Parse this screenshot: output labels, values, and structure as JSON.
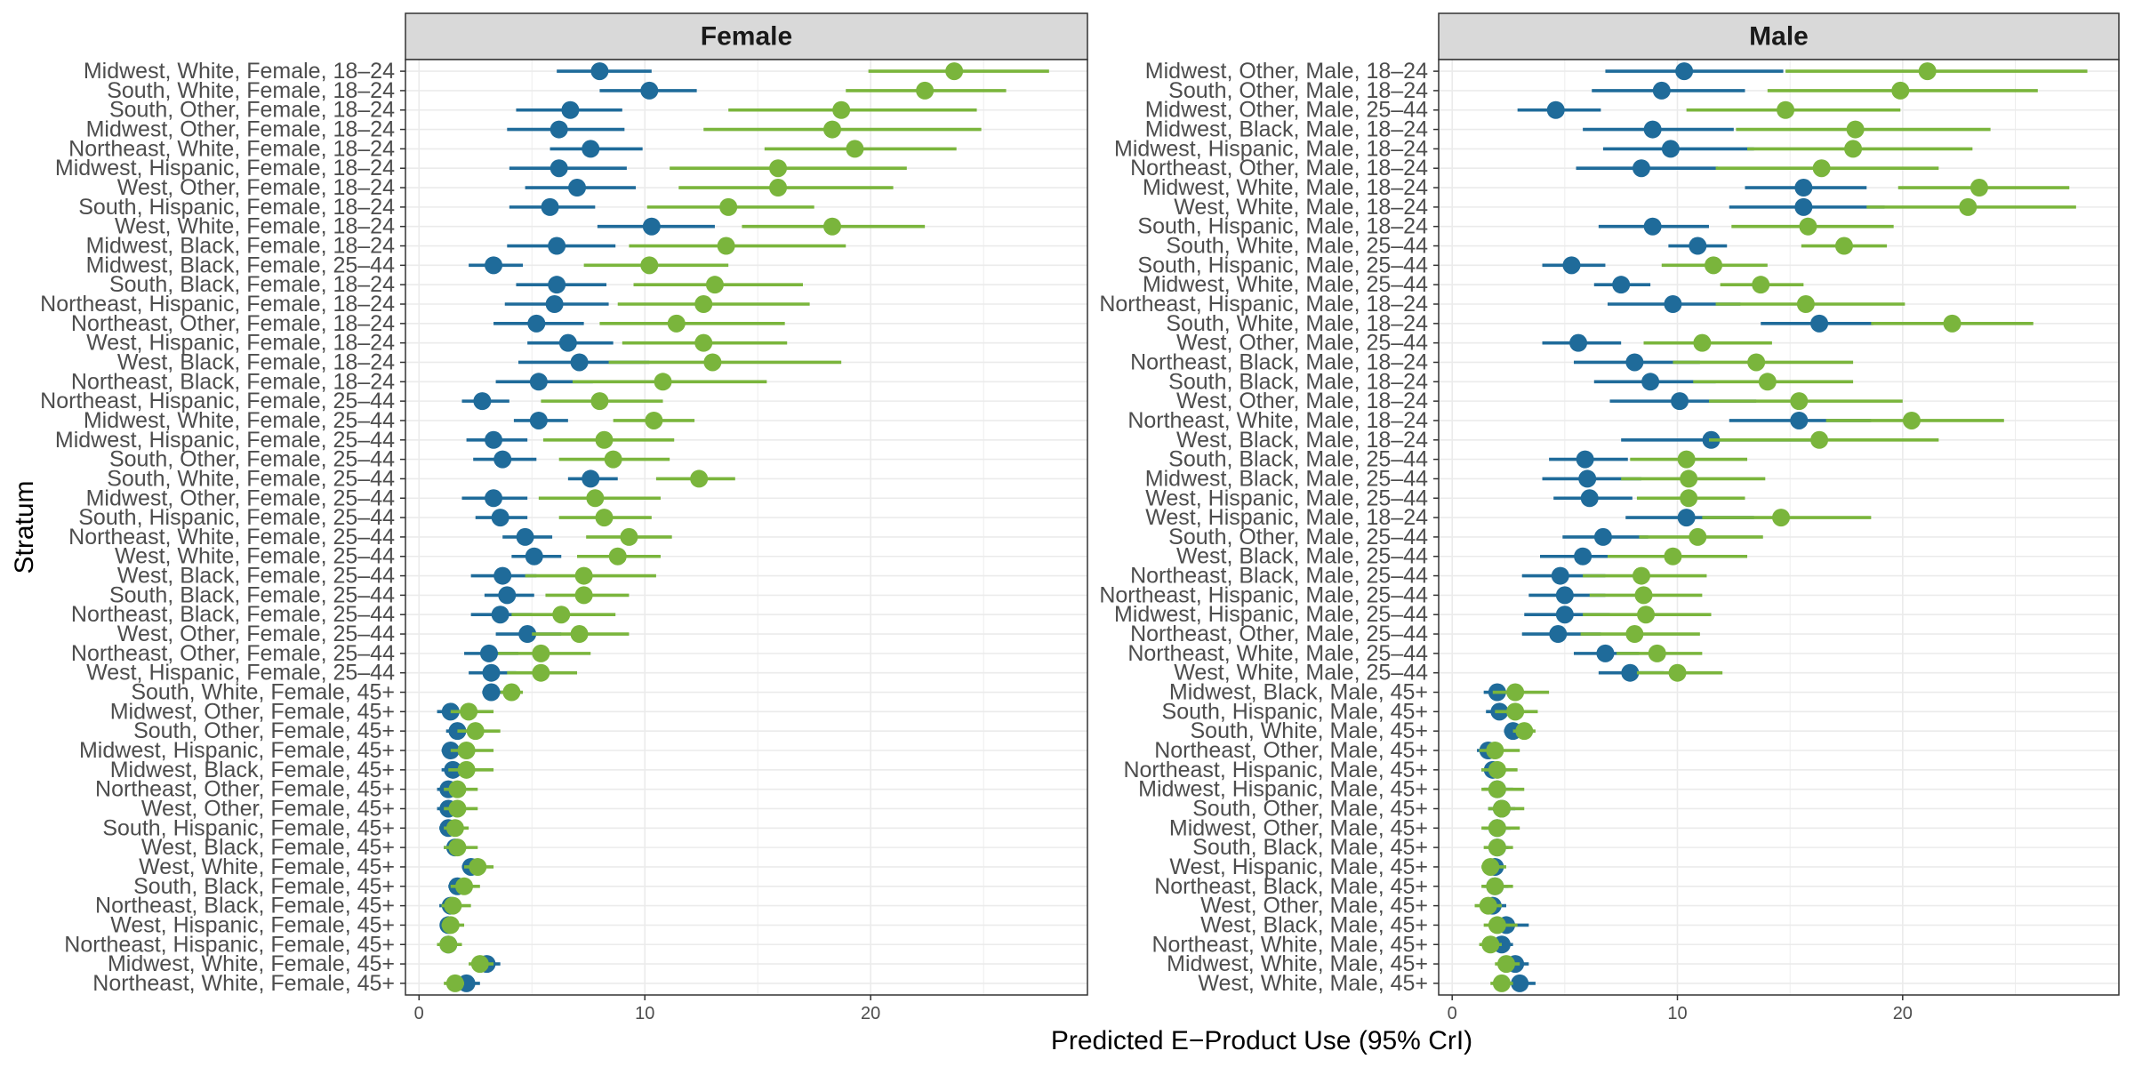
{
  "chart_data": {
    "type": "scatter",
    "xlabel": "Predicted E−Product Use (95% CrI)",
    "ylabel": "Stratum",
    "xlim": [
      -0.6,
      29.6
    ],
    "xticks": [
      0,
      10,
      20
    ],
    "grid": true,
    "panels": [
      {
        "title": "Female",
        "strata": [
          "Midwest, White, Female, 18–24",
          "South, White, Female, 18–24",
          "South, Other, Female, 18–24",
          "Midwest, Other, Female, 18–24",
          "Northeast, White, Female, 18–24",
          "Midwest, Hispanic, Female, 18–24",
          "West, Other, Female, 18–24",
          "South, Hispanic, Female, 18–24",
          "West, White, Female, 18–24",
          "Midwest, Black, Female, 18–24",
          "Midwest, Black, Female, 25–44",
          "South, Black, Female, 18–24",
          "Northeast, Hispanic, Female, 18–24",
          "Northeast, Other, Female, 18–24",
          "West, Hispanic, Female, 18–24",
          "West, Black, Female, 18–24",
          "Northeast, Black, Female, 18–24",
          "Northeast, Hispanic, Female, 25–44",
          "Midwest, White, Female, 25–44",
          "Midwest, Hispanic, Female, 25–44",
          "South, Other, Female, 25–44",
          "South, White, Female, 25–44",
          "Midwest, Other, Female, 25–44",
          "South, Hispanic, Female, 25–44",
          "Northeast, White, Female, 25–44",
          "West, White, Female, 25–44",
          "West, Black, Female, 25–44",
          "South, Black, Female, 25–44",
          "Northeast, Black, Female, 25–44",
          "West, Other, Female, 25–44",
          "Northeast, Other, Female, 25–44",
          "West, Hispanic, Female, 25–44",
          "South, White, Female, 45+",
          "Midwest, Other, Female, 45+",
          "South, Other, Female, 45+",
          "Midwest, Hispanic, Female, 45+",
          "Midwest, Black, Female, 45+",
          "Northeast, Other, Female, 45+",
          "West, Other, Female, 45+",
          "South, Hispanic, Female, 45+",
          "West, Black, Female, 45+",
          "West, White, Female, 45+",
          "South, Black, Female, 45+",
          "Northeast, Black, Female, 45+",
          "West, Hispanic, Female, 45+",
          "Northeast, Hispanic, Female, 45+",
          "Midwest, White, Female, 45+",
          "Northeast, White, Female, 45+"
        ],
        "series": [
          {
            "color": "#1f6b9a",
            "estimate": [
              8.0,
              10.2,
              6.7,
              6.2,
              7.6,
              6.2,
              7.0,
              5.8,
              10.3,
              6.1,
              3.3,
              6.1,
              6.0,
              5.2,
              6.6,
              7.1,
              5.3,
              2.8,
              5.3,
              3.3,
              3.7,
              7.6,
              3.3,
              3.6,
              4.7,
              5.1,
              3.7,
              3.9,
              3.6,
              4.8,
              3.1,
              3.2,
              3.2,
              1.4,
              1.7,
              1.4,
              1.5,
              1.3,
              1.3,
              1.3,
              1.6,
              2.3,
              1.7,
              1.4,
              1.3,
              1.3,
              3.0,
              2.1
            ],
            "lower": [
              6.1,
              8.0,
              4.3,
              3.9,
              5.8,
              4.0,
              4.7,
              4.0,
              7.9,
              3.9,
              2.2,
              4.3,
              3.8,
              3.3,
              4.8,
              4.4,
              3.4,
              1.9,
              4.2,
              2.1,
              2.4,
              6.6,
              1.9,
              2.5,
              3.7,
              4.1,
              2.3,
              2.9,
              2.3,
              3.4,
              2.0,
              2.2,
              2.8,
              0.8,
              1.2,
              1.0,
              1.0,
              0.8,
              0.8,
              0.9,
              1.1,
              1.9,
              1.3,
              0.9,
              1.0,
              0.8,
              2.5,
              1.6
            ],
            "upper": [
              10.3,
              12.3,
              9.0,
              9.1,
              9.9,
              9.2,
              9.6,
              7.8,
              13.1,
              8.7,
              4.6,
              8.3,
              8.4,
              7.3,
              8.6,
              10.2,
              7.7,
              4.0,
              6.6,
              4.8,
              5.2,
              8.8,
              4.8,
              4.8,
              5.9,
              6.3,
              5.2,
              5.1,
              5.0,
              6.3,
              4.4,
              4.3,
              3.7,
              2.0,
              2.3,
              2.0,
              2.0,
              1.8,
              1.8,
              1.7,
              2.1,
              2.8,
              2.2,
              1.9,
              1.7,
              1.7,
              3.6,
              2.7
            ]
          },
          {
            "color": "#7ab53c",
            "estimate": [
              23.7,
              22.4,
              18.7,
              18.3,
              19.3,
              15.9,
              15.9,
              13.7,
              18.3,
              13.6,
              10.2,
              13.1,
              12.6,
              11.4,
              12.6,
              13.0,
              10.8,
              8.0,
              10.4,
              8.2,
              8.6,
              12.4,
              7.8,
              8.2,
              9.3,
              8.8,
              7.3,
              7.3,
              6.3,
              7.1,
              5.4,
              5.4,
              4.1,
              2.2,
              2.5,
              2.1,
              2.1,
              1.7,
              1.7,
              1.6,
              1.7,
              2.6,
              2.0,
              1.5,
              1.4,
              1.3,
              2.7,
              1.6
            ],
            "lower": [
              19.9,
              18.9,
              13.7,
              12.6,
              15.3,
              11.1,
              11.5,
              10.1,
              14.3,
              9.3,
              7.3,
              9.5,
              8.8,
              8.0,
              9.0,
              8.4,
              6.8,
              5.4,
              8.6,
              5.5,
              6.2,
              10.5,
              5.3,
              6.2,
              7.4,
              7.0,
              4.7,
              5.6,
              4.1,
              5.0,
              3.5,
              3.9,
              3.6,
              1.4,
              1.7,
              1.4,
              1.3,
              1.1,
              1.1,
              1.1,
              1.1,
              2.0,
              1.4,
              1.0,
              1.0,
              0.8,
              2.2,
              1.1
            ],
            "upper": [
              27.9,
              26.0,
              24.7,
              24.9,
              23.8,
              21.6,
              21.0,
              17.5,
              22.4,
              18.9,
              13.7,
              17.0,
              17.3,
              16.2,
              16.3,
              18.7,
              15.4,
              10.8,
              12.2,
              11.3,
              11.1,
              14.0,
              10.7,
              10.3,
              11.2,
              10.7,
              10.5,
              9.3,
              8.7,
              9.3,
              7.6,
              7.0,
              4.6,
              3.3,
              3.6,
              3.3,
              3.3,
              2.6,
              2.6,
              2.2,
              2.6,
              3.3,
              2.7,
              2.3,
              2.0,
              1.9,
              3.3,
              2.0
            ]
          }
        ]
      },
      {
        "title": "Male",
        "strata": [
          "Midwest, Other, Male, 18–24",
          "South, Other, Male, 18–24",
          "Midwest, Other, Male, 25–44",
          "Midwest, Black, Male, 18–24",
          "Midwest, Hispanic, Male, 18–24",
          "Northeast, Other, Male, 18–24",
          "Midwest, White, Male, 18–24",
          "West, White, Male, 18–24",
          "South, Hispanic, Male, 18–24",
          "South, White, Male, 25–44",
          "South, Hispanic, Male, 25–44",
          "Midwest, White, Male, 25–44",
          "Northeast, Hispanic, Male, 18–24",
          "South, White, Male, 18–24",
          "West, Other, Male, 25–44",
          "Northeast, Black, Male, 18–24",
          "South, Black, Male, 18–24",
          "West, Other, Male, 18–24",
          "Northeast, White, Male, 18–24",
          "West, Black, Male, 18–24",
          "South, Black, Male, 25–44",
          "Midwest, Black, Male, 25–44",
          "West, Hispanic, Male, 25–44",
          "West, Hispanic, Male, 18–24",
          "South, Other, Male, 25–44",
          "West, Black, Male, 25–44",
          "Northeast, Black, Male, 25–44",
          "Northeast, Hispanic, Male, 25–44",
          "Midwest, Hispanic, Male, 25–44",
          "Northeast, Other, Male, 25–44",
          "Northeast, White, Male, 25–44",
          "West, White, Male, 25–44",
          "Midwest, Black, Male, 45+",
          "South, Hispanic, Male, 45+",
          "South, White, Male, 45+",
          "Northeast, Other, Male, 45+",
          "Northeast, Hispanic, Male, 45+",
          "Midwest, Hispanic, Male, 45+",
          "South, Other, Male, 45+",
          "Midwest, Other, Male, 45+",
          "South, Black, Male, 45+",
          "West, Hispanic, Male, 45+",
          "Northeast, Black, Male, 45+",
          "West, Other, Male, 45+",
          "West, Black, Male, 45+",
          "Northeast, White, Male, 45+",
          "Midwest, White, Male, 45+",
          "West, White, Male, 45+"
        ],
        "series": [
          {
            "color": "#1f6b9a",
            "estimate": [
              10.3,
              9.3,
              4.6,
              8.9,
              9.7,
              8.4,
              15.6,
              15.6,
              8.9,
              10.9,
              5.3,
              7.5,
              9.8,
              16.3,
              5.6,
              8.1,
              8.8,
              10.1,
              15.4,
              11.5,
              5.9,
              6.0,
              6.1,
              10.4,
              6.7,
              5.8,
              4.8,
              5.0,
              5.0,
              4.7,
              6.8,
              7.9,
              2.0,
              2.1,
              2.7,
              1.6,
              1.8,
              2.0,
              2.2,
              2.0,
              2.0,
              1.9,
              1.9,
              1.8,
              2.4,
              2.2,
              2.8,
              3.0
            ],
            "lower": [
              6.8,
              6.2,
              2.9,
              5.8,
              6.7,
              5.5,
              13.0,
              12.3,
              6.5,
              9.6,
              4.0,
              6.3,
              6.9,
              13.7,
              4.0,
              5.4,
              6.3,
              7.0,
              12.3,
              7.5,
              4.3,
              4.0,
              4.5,
              7.7,
              4.9,
              3.9,
              3.1,
              3.4,
              3.2,
              3.1,
              5.4,
              6.5,
              1.4,
              1.5,
              2.3,
              1.1,
              1.3,
              1.4,
              1.6,
              1.4,
              1.6,
              1.4,
              1.4,
              1.3,
              1.7,
              1.7,
              2.3,
              2.3
            ],
            "upper": [
              14.7,
              13.0,
              6.6,
              12.5,
              13.4,
              11.8,
              18.4,
              19.2,
              11.4,
              12.2,
              6.8,
              8.8,
              12.8,
              18.7,
              7.5,
              11.0,
              11.7,
              13.5,
              18.6,
              16.1,
              7.8,
              8.4,
              8.0,
              13.4,
              8.7,
              8.2,
              6.8,
              6.8,
              7.0,
              6.6,
              8.3,
              9.4,
              2.7,
              2.8,
              3.1,
              2.2,
              2.4,
              2.7,
              2.8,
              2.6,
              2.5,
              2.3,
              2.5,
              2.4,
              3.4,
              2.7,
              3.4,
              3.7
            ]
          },
          {
            "color": "#7ab53c",
            "estimate": [
              21.1,
              19.9,
              14.8,
              17.9,
              17.8,
              16.4,
              23.4,
              22.9,
              15.8,
              17.4,
              11.6,
              13.7,
              15.7,
              22.2,
              11.1,
              13.5,
              14.0,
              15.4,
              20.4,
              16.3,
              10.4,
              10.5,
              10.5,
              14.6,
              10.9,
              9.8,
              8.4,
              8.5,
              8.6,
              8.1,
              9.1,
              10.0,
              2.8,
              2.8,
              3.2,
              1.9,
              2.0,
              2.0,
              2.2,
              2.0,
              2.0,
              1.7,
              1.9,
              1.6,
              2.0,
              1.7,
              2.4,
              2.2
            ],
            "lower": [
              14.8,
              14.0,
              10.4,
              12.6,
              13.1,
              11.7,
              19.8,
              18.4,
              12.4,
              15.5,
              9.3,
              11.9,
              11.7,
              18.6,
              8.5,
              9.8,
              10.7,
              11.4,
              16.6,
              11.4,
              7.9,
              7.5,
              8.2,
              11.1,
              8.3,
              6.9,
              5.8,
              6.1,
              5.8,
              5.7,
              7.3,
              8.2,
              1.8,
              1.9,
              2.7,
              1.2,
              1.3,
              1.3,
              1.6,
              1.3,
              1.4,
              1.3,
              1.3,
              1.0,
              1.4,
              1.2,
              1.9,
              1.7
            ],
            "upper": [
              28.2,
              26.0,
              19.9,
              23.9,
              23.1,
              21.6,
              27.4,
              27.7,
              19.6,
              19.3,
              14.0,
              15.6,
              20.1,
              25.8,
              14.2,
              17.8,
              17.8,
              20.0,
              24.5,
              21.6,
              13.1,
              13.9,
              13.0,
              18.6,
              13.8,
              13.1,
              11.3,
              11.1,
              11.5,
              11.0,
              11.1,
              12.0,
              4.3,
              3.8,
              3.7,
              3.0,
              2.9,
              3.2,
              3.2,
              3.0,
              2.7,
              2.4,
              2.7,
              2.2,
              2.9,
              2.2,
              3.0,
              2.7
            ]
          }
        ]
      }
    ]
  }
}
